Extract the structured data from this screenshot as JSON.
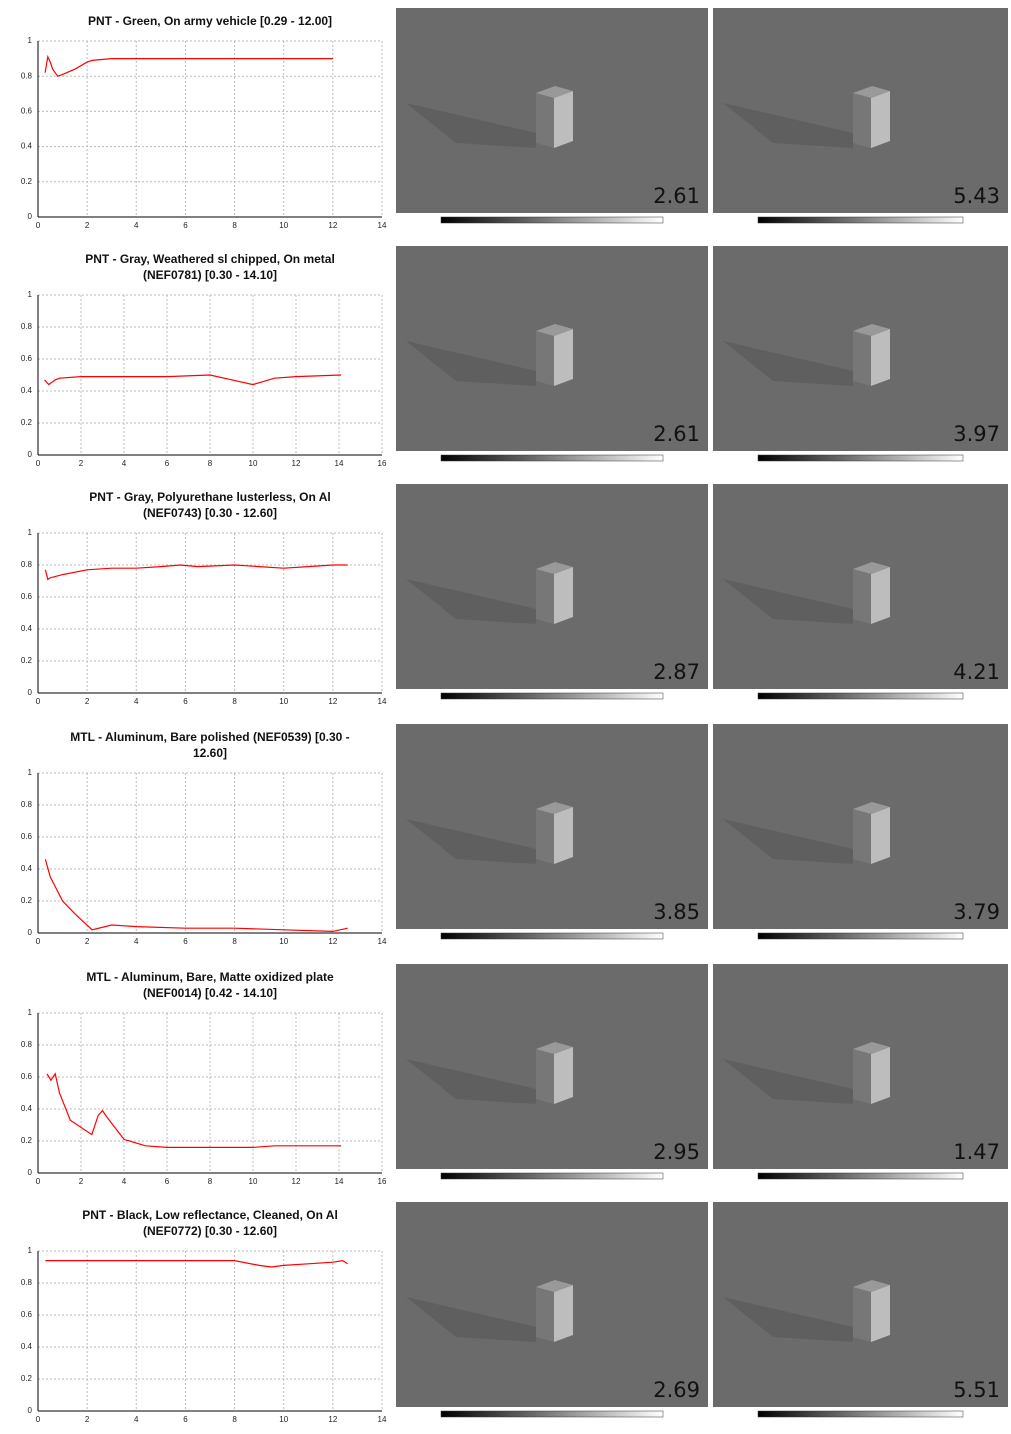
{
  "chart_data": [
    {
      "type": "line",
      "title": [
        "PNT - Green, On army vehicle  [0.29 - 12.00]"
      ],
      "color": "#ff0000",
      "grid": true,
      "x": [
        0.29,
        0.4,
        0.5,
        0.6,
        0.8,
        1.0,
        1.5,
        2.0,
        2.2,
        3,
        4,
        6,
        8,
        10,
        12
      ],
      "values": [
        0.82,
        0.91,
        0.88,
        0.84,
        0.8,
        0.81,
        0.84,
        0.88,
        0.89,
        0.9,
        0.9,
        0.9,
        0.9,
        0.9,
        0.9
      ],
      "xlim": [
        0,
        14
      ],
      "xticks": [
        0,
        2,
        4,
        6,
        8,
        10,
        12,
        14
      ],
      "ylim": [
        0,
        1
      ],
      "yticks": [
        0,
        0.2,
        0.4,
        0.6,
        0.8,
        1
      ]
    },
    {
      "type": "line",
      "title": [
        "PNT - Gray, Weathered sl chipped, On metal",
        "(NEF0781)  [0.30 - 14.10]"
      ],
      "color": "#ff0000",
      "grid": true,
      "x": [
        0.3,
        0.5,
        0.8,
        1,
        2,
        4,
        6,
        8,
        9,
        10,
        11,
        12,
        14.1
      ],
      "values": [
        0.47,
        0.44,
        0.47,
        0.48,
        0.49,
        0.49,
        0.49,
        0.5,
        0.47,
        0.44,
        0.48,
        0.49,
        0.5
      ],
      "xlim": [
        0,
        16
      ],
      "xticks": [
        0,
        2,
        4,
        6,
        8,
        10,
        12,
        14,
        16
      ],
      "ylim": [
        0,
        1
      ],
      "yticks": [
        0,
        0.2,
        0.4,
        0.6,
        0.8,
        1
      ]
    },
    {
      "type": "line",
      "title": [
        "PNT - Gray, Polyurethane lusterless, On Al",
        "(NEF0743)  [0.30 - 12.60]"
      ],
      "color": "#ff0000",
      "grid": true,
      "x": [
        0.3,
        0.4,
        0.5,
        1,
        2,
        3,
        4,
        5,
        5.8,
        6.5,
        8,
        9,
        10,
        11,
        12,
        12.6
      ],
      "values": [
        0.77,
        0.71,
        0.72,
        0.74,
        0.77,
        0.78,
        0.78,
        0.79,
        0.8,
        0.79,
        0.8,
        0.79,
        0.78,
        0.79,
        0.8,
        0.8
      ],
      "xlim": [
        0,
        14
      ],
      "xticks": [
        0,
        2,
        4,
        6,
        8,
        10,
        12,
        14
      ],
      "ylim": [
        0,
        1
      ],
      "yticks": [
        0,
        0.2,
        0.4,
        0.6,
        0.8,
        1
      ]
    },
    {
      "type": "line",
      "title": [
        "MTL - Aluminum, Bare polished (NEF0539)  [0.30 -",
        "12.60]"
      ],
      "color": "#ff0000",
      "grid": true,
      "x": [
        0.3,
        0.5,
        1,
        1.5,
        2.2,
        3,
        4,
        6,
        8,
        10,
        12,
        12.6
      ],
      "values": [
        0.46,
        0.35,
        0.2,
        0.12,
        0.02,
        0.05,
        0.04,
        0.03,
        0.03,
        0.02,
        0.01,
        0.03
      ],
      "xlim": [
        0,
        14
      ],
      "xticks": [
        0,
        2,
        4,
        6,
        8,
        10,
        12,
        14
      ],
      "ylim": [
        0,
        1
      ],
      "yticks": [
        0,
        0.2,
        0.4,
        0.6,
        0.8,
        1
      ]
    },
    {
      "type": "line",
      "title": [
        "MTL - Aluminum, Bare, Matte oxidized plate",
        "(NEF0014)  [0.42 - 14.10]"
      ],
      "color": "#ff0000",
      "grid": true,
      "x": [
        0.42,
        0.6,
        0.8,
        1,
        1.5,
        2.5,
        2.8,
        3,
        3.2,
        4,
        5,
        6,
        8,
        10,
        11,
        14.1
      ],
      "values": [
        0.62,
        0.58,
        0.62,
        0.5,
        0.33,
        0.24,
        0.36,
        0.39,
        0.35,
        0.21,
        0.17,
        0.16,
        0.16,
        0.16,
        0.17,
        0.17
      ],
      "xlim": [
        0,
        16
      ],
      "xticks": [
        0,
        2,
        4,
        6,
        8,
        10,
        12,
        14,
        16
      ],
      "ylim": [
        0,
        1
      ],
      "yticks": [
        0,
        0.2,
        0.4,
        0.6,
        0.8,
        1
      ]
    },
    {
      "type": "line",
      "title": [
        "PNT - Black, Low reflectance, Cleaned, On Al",
        "(NEF0772)  [0.30 - 12.60]"
      ],
      "color": "#ff0000",
      "grid": true,
      "x": [
        0.3,
        2,
        4,
        6,
        8,
        9,
        9.5,
        10,
        11,
        12,
        12.4,
        12.6
      ],
      "values": [
        0.94,
        0.94,
        0.94,
        0.94,
        0.94,
        0.91,
        0.9,
        0.91,
        0.92,
        0.93,
        0.94,
        0.92
      ],
      "xlim": [
        0,
        14
      ],
      "xticks": [
        0,
        2,
        4,
        6,
        8,
        10,
        12,
        14
      ],
      "ylim": [
        0,
        1
      ],
      "yticks": [
        0,
        0.2,
        0.4,
        0.6,
        0.8,
        1
      ]
    }
  ],
  "renders": [
    [
      2.61,
      5.43
    ],
    [
      2.61,
      3.97
    ],
    [
      2.87,
      4.21
    ],
    [
      3.85,
      3.79
    ],
    [
      2.95,
      1.47
    ],
    [
      2.69,
      5.51
    ]
  ]
}
